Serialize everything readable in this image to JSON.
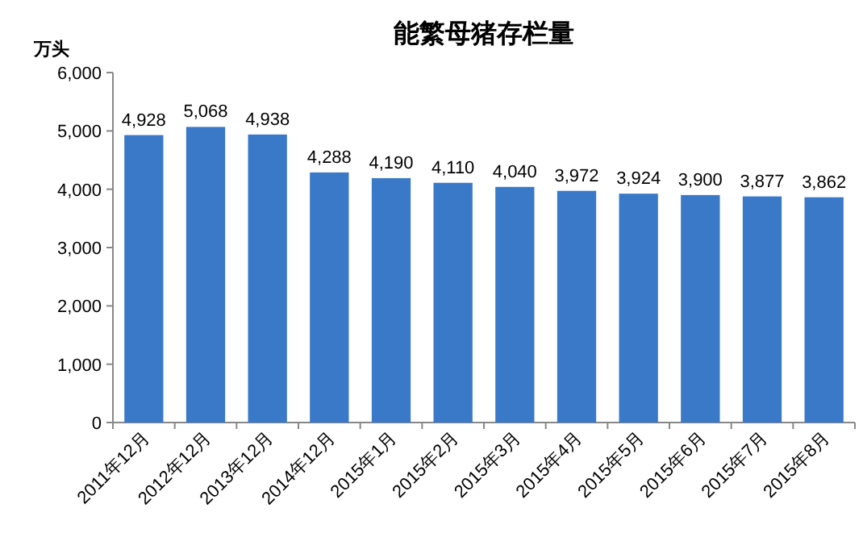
{
  "chart_data": {
    "type": "bar",
    "title": "能繁母猪存栏量",
    "ylabel": "万头",
    "categories": [
      "2011年12月",
      "2012年12月",
      "2013年12月",
      "2014年12月",
      "2015年1月",
      "2015年2月",
      "2015年3月",
      "2015年4月",
      "2015年5月",
      "2015年6月",
      "2015年7月",
      "2015年8月"
    ],
    "values": [
      4928,
      5068,
      4938,
      4288,
      4190,
      4110,
      4040,
      3972,
      3924,
      3900,
      3877,
      3862
    ],
    "value_labels": [
      "4,928",
      "5,068",
      "4,938",
      "4,288",
      "4,190",
      "4,110",
      "4,040",
      "3,972",
      "3,924",
      "3,900",
      "3,877",
      "3,862"
    ],
    "color": "#3a78c8",
    "ylim": [
      0,
      6000
    ],
    "yticks": [
      0,
      {
        "value": 1000,
        "label": "1,000"
      },
      {
        "value": 2000,
        "label": "2,000"
      },
      {
        "value": 3000,
        "label": "3,000"
      },
      {
        "value": 4000,
        "label": "4,000"
      },
      {
        "value": 5000,
        "label": "5,000"
      },
      {
        "value": 6000,
        "label": "6,000"
      }
    ]
  }
}
